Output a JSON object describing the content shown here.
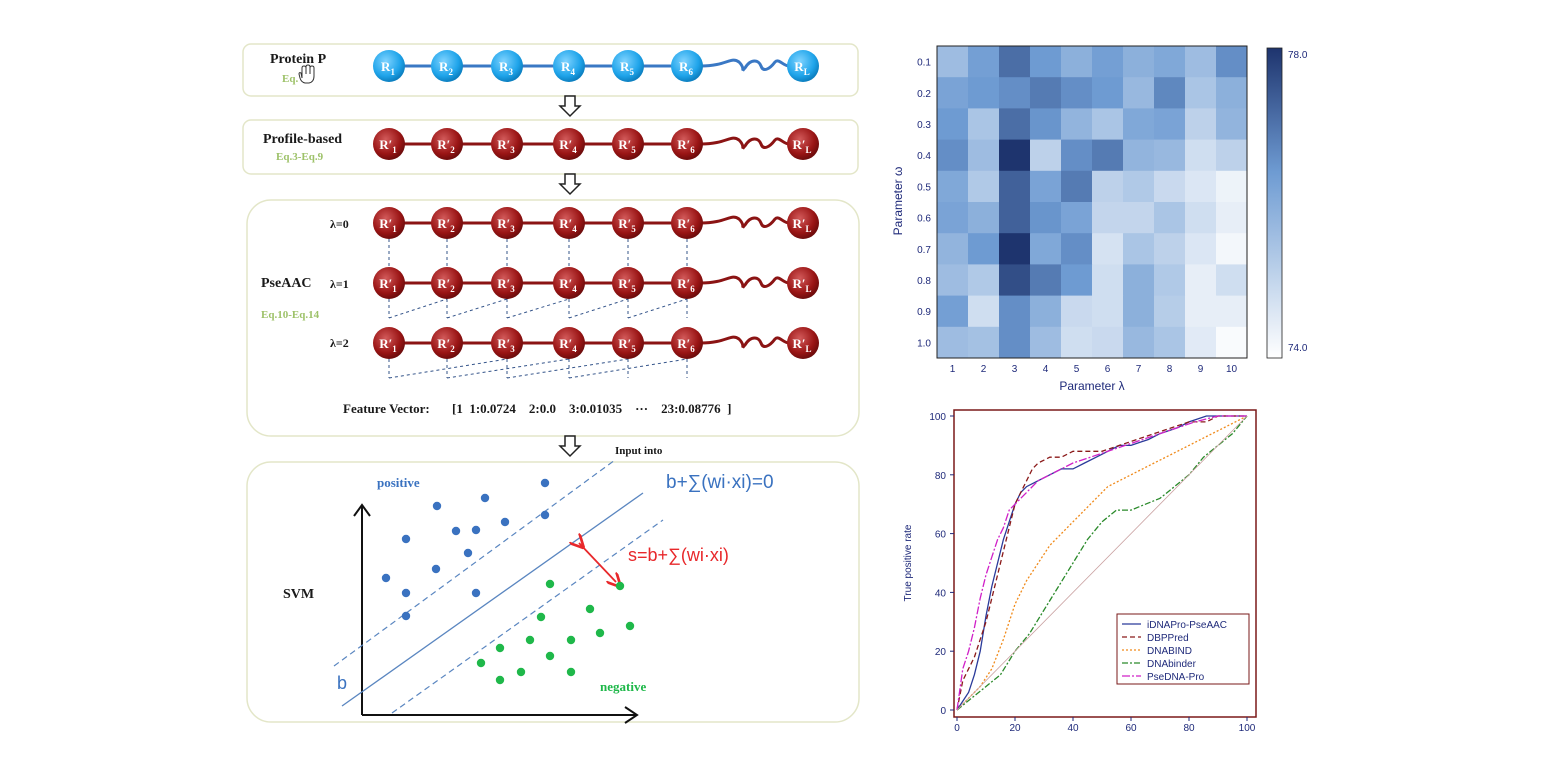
{
  "pipeline": {
    "protein": {
      "label": "Protein P",
      "eq": "Eq.",
      "nodes": [
        "R1",
        "R2",
        "R3",
        "R4",
        "R5",
        "R6",
        "RL"
      ]
    },
    "profile": {
      "label": "Profile-based",
      "eq": "Eq.3-Eq.9",
      "nodes": [
        "R′1",
        "R′2",
        "R′3",
        "R′4",
        "R′5",
        "R′6",
        "R′L"
      ]
    },
    "pseaac": {
      "label": "PseAAC",
      "eq": "Eq.10-Eq.14",
      "lambdas": [
        "λ=0",
        "λ=1",
        "λ=2"
      ]
    },
    "feature_vector": {
      "label": "Feature Vector:",
      "values": "[1  1:0.0724    2:0.0    3:0.01035    ···    23:0.08776  ]"
    },
    "input_into": "Input into",
    "svm": {
      "label": "SVM",
      "positive": "positive",
      "negative": "negative",
      "hyperplane_eq": "b+∑(wi·xi)=0",
      "score_eq": "s=b+∑(wi·xi)",
      "b": "b",
      "colors": {
        "positive": "#3a72c0",
        "negative": "#1fb84a",
        "score": "#e8282b"
      }
    }
  },
  "chart_data": [
    {
      "type": "heatmap",
      "xlabel": "Parameter λ",
      "ylabel": "Parameter ω",
      "x": [
        "1",
        "2",
        "3",
        "4",
        "5",
        "6",
        "7",
        "8",
        "9",
        "10"
      ],
      "y": [
        "0.1",
        "0.2",
        "0.3",
        "0.4",
        "0.5",
        "0.6",
        "0.7",
        "0.8",
        "0.9",
        "1.0"
      ],
      "colorbar": {
        "min": 74.0,
        "max": 78.0,
        "min_label": "74.0",
        "max_label": "78.0"
      },
      "values": [
        [
          75.6,
          76.3,
          77.1,
          76.4,
          75.9,
          76.3,
          75.9,
          76.1,
          75.6,
          76.6
        ],
        [
          76.2,
          76.4,
          76.6,
          76.9,
          76.6,
          76.4,
          75.7,
          76.7,
          75.4,
          75.9
        ],
        [
          76.4,
          75.4,
          77.1,
          76.5,
          75.8,
          75.4,
          76.1,
          76.2,
          75.1,
          75.8
        ],
        [
          76.6,
          75.6,
          78.0,
          75.1,
          76.6,
          76.9,
          75.8,
          75.7,
          74.8,
          75.1
        ],
        [
          76.1,
          75.3,
          77.3,
          76.2,
          76.9,
          75.1,
          75.3,
          74.9,
          74.6,
          74.3
        ],
        [
          76.2,
          75.9,
          77.3,
          76.5,
          76.2,
          75.0,
          75.0,
          75.4,
          74.8,
          74.4
        ],
        [
          75.8,
          76.4,
          78.0,
          76.1,
          76.6,
          74.7,
          75.4,
          75.1,
          74.6,
          74.2
        ],
        [
          75.6,
          75.3,
          77.6,
          76.9,
          76.4,
          74.8,
          75.9,
          75.3,
          74.4,
          74.8
        ],
        [
          76.3,
          74.8,
          76.6,
          75.9,
          74.9,
          74.8,
          75.9,
          75.2,
          74.4,
          74.4
        ],
        [
          75.6,
          75.5,
          76.6,
          75.6,
          74.8,
          74.9,
          75.7,
          75.4,
          74.5,
          74.1
        ]
      ]
    },
    {
      "type": "line",
      "xlabel": "",
      "ylabel": "True positive rate",
      "xlim": [
        0,
        100
      ],
      "ylim": [
        0,
        100
      ],
      "x_ticks": [
        "0",
        "20",
        "40",
        "60",
        "80",
        "100"
      ],
      "y_ticks": [
        "0",
        "20",
        "40",
        "60",
        "80",
        "100"
      ],
      "series": [
        {
          "name": "iDNAPro-PseAAC",
          "color": "#2a3a9a",
          "dash": "",
          "x": [
            0,
            4,
            6,
            8,
            10,
            12,
            14,
            16,
            18,
            20,
            22,
            24,
            28,
            32,
            36,
            40,
            44,
            48,
            52,
            56,
            60,
            66,
            70,
            76,
            80,
            86,
            90,
            100
          ],
          "y": [
            0,
            6,
            12,
            20,
            32,
            42,
            50,
            58,
            64,
            70,
            74,
            76,
            78,
            80,
            82,
            82,
            84,
            86,
            88,
            90,
            90,
            92,
            94,
            96,
            98,
            100,
            100,
            100
          ]
        },
        {
          "name": "DBPPred",
          "color": "#8b1a1a",
          "dash": "5,3",
          "x": [
            0,
            2,
            4,
            6,
            8,
            10,
            12,
            14,
            16,
            18,
            20,
            22,
            24,
            26,
            28,
            32,
            36,
            40,
            44,
            50,
            56,
            62,
            68,
            74,
            80,
            86,
            90,
            100
          ],
          "y": [
            0,
            10,
            14,
            18,
            24,
            30,
            38,
            46,
            54,
            62,
            70,
            74,
            78,
            82,
            84,
            86,
            86,
            88,
            88,
            88,
            90,
            92,
            94,
            96,
            98,
            98,
            100,
            100
          ]
        },
        {
          "name": "DNABIND",
          "color": "#f08a1a",
          "dash": "2,2",
          "x": [
            0,
            4,
            8,
            12,
            16,
            20,
            24,
            28,
            32,
            36,
            40,
            44,
            48,
            52,
            56,
            60,
            64,
            68,
            72,
            76,
            80,
            84,
            88,
            92,
            96,
            100
          ],
          "y": [
            0,
            4,
            8,
            14,
            24,
            36,
            44,
            50,
            56,
            60,
            64,
            68,
            72,
            76,
            78,
            80,
            82,
            84,
            86,
            88,
            90,
            92,
            94,
            96,
            98,
            100
          ]
        },
        {
          "name": "DNAbinder",
          "color": "#2a8a2a",
          "dash": "6,2,2,2",
          "x": [
            0,
            5,
            10,
            15,
            20,
            25,
            30,
            35,
            40,
            45,
            50,
            55,
            60,
            65,
            70,
            75,
            80,
            85,
            90,
            95,
            100
          ],
          "y": [
            0,
            4,
            8,
            12,
            20,
            26,
            34,
            42,
            50,
            58,
            64,
            68,
            68,
            70,
            72,
            76,
            80,
            86,
            90,
            94,
            100
          ]
        },
        {
          "name": "PseDNA-Pro",
          "color": "#d020c8",
          "dash": "8,2,2,2",
          "x": [
            0,
            2,
            4,
            6,
            8,
            10,
            12,
            14,
            16,
            18,
            20,
            24,
            28,
            32,
            36,
            40,
            46,
            52,
            58,
            64,
            70,
            76,
            82,
            90,
            100
          ],
          "y": [
            0,
            14,
            20,
            28,
            38,
            46,
            52,
            58,
            62,
            68,
            70,
            74,
            78,
            80,
            82,
            84,
            86,
            88,
            90,
            92,
            94,
            96,
            98,
            100,
            100
          ]
        },
        {
          "name": "",
          "color": "#c9a0a0",
          "dash": "",
          "x": [
            0,
            100
          ],
          "y": [
            0,
            100
          ]
        }
      ]
    }
  ]
}
